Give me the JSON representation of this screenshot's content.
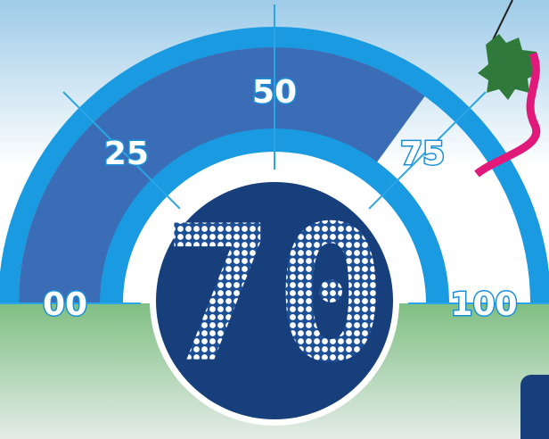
{
  "chart_data": {
    "type": "gauge",
    "value": 70,
    "range": [
      0,
      100
    ],
    "ticks": [
      {
        "value": 0,
        "label": "00"
      },
      25,
      50,
      75,
      100
    ],
    "color": "#3a6db5"
  }
}
